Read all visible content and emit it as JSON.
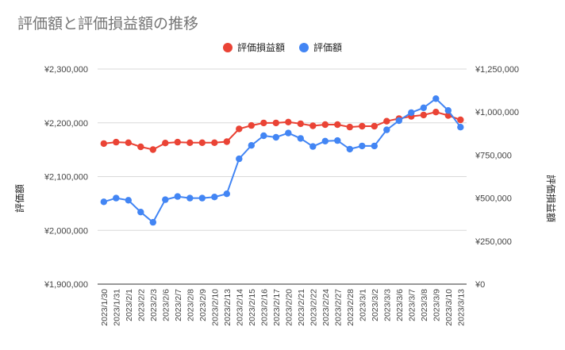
{
  "chart_data": {
    "type": "line",
    "title": "評価額と評価損益額の推移",
    "legend_position": "top",
    "grid": true,
    "x": [
      "2023/1/30",
      "2023/1/31",
      "2023/2/1",
      "2023/2/2",
      "2023/2/3",
      "2023/2/6",
      "2023/2/7",
      "2023/2/8",
      "2023/2/9",
      "2023/2/10",
      "2023/2/13",
      "2023/2/14",
      "2023/2/15",
      "2023/2/16",
      "2023/2/17",
      "2023/2/20",
      "2023/2/21",
      "2023/2/22",
      "2023/2/24",
      "2023/2/27",
      "2023/2/28",
      "2023/3/1",
      "2023/3/2",
      "2023/3/3",
      "2023/3/6",
      "2023/3/7",
      "2023/3/8",
      "2023/3/9",
      "2023/3/10",
      "2023/3/13"
    ],
    "left_axis": {
      "label": "評価額",
      "ylim": [
        1900000,
        2300000
      ],
      "ticks": [
        1900000,
        2000000,
        2100000,
        2200000,
        2300000
      ],
      "tick_labels": [
        "¥1,900,000",
        "¥2,000,000",
        "¥2,100,000",
        "¥2,200,000",
        "¥2,300,000"
      ]
    },
    "right_axis": {
      "label": "評価損益額",
      "ylim": [
        0,
        1250000
      ],
      "ticks": [
        0,
        250000,
        500000,
        750000,
        1000000,
        1250000
      ],
      "tick_labels": [
        "¥0",
        "¥250,000",
        "¥500,000",
        "¥750,000",
        "¥1,000,000",
        "¥1,250,000"
      ]
    },
    "series": [
      {
        "name": "評価損益額",
        "axis": "right",
        "color": "#ea4335",
        "values": [
          817000,
          825000,
          822000,
          798000,
          782000,
          820000,
          825000,
          822000,
          822000,
          822000,
          828000,
          902000,
          922000,
          937000,
          937000,
          942000,
          932000,
          920000,
          927000,
          927000,
          913000,
          918000,
          918000,
          947000,
          962000,
          975000,
          983000,
          1000000,
          980000,
          955000
        ]
      },
      {
        "name": "評価額",
        "axis": "left",
        "color": "#4285f4",
        "values": [
          2053000,
          2060000,
          2056000,
          2034000,
          2015000,
          2057000,
          2063000,
          2060000,
          2060000,
          2062000,
          2068000,
          2133000,
          2158000,
          2176000,
          2173000,
          2181000,
          2171000,
          2156000,
          2166000,
          2167000,
          2151000,
          2157000,
          2157000,
          2187000,
          2204000,
          2219000,
          2228000,
          2245000,
          2223000,
          2192000
        ]
      }
    ]
  }
}
